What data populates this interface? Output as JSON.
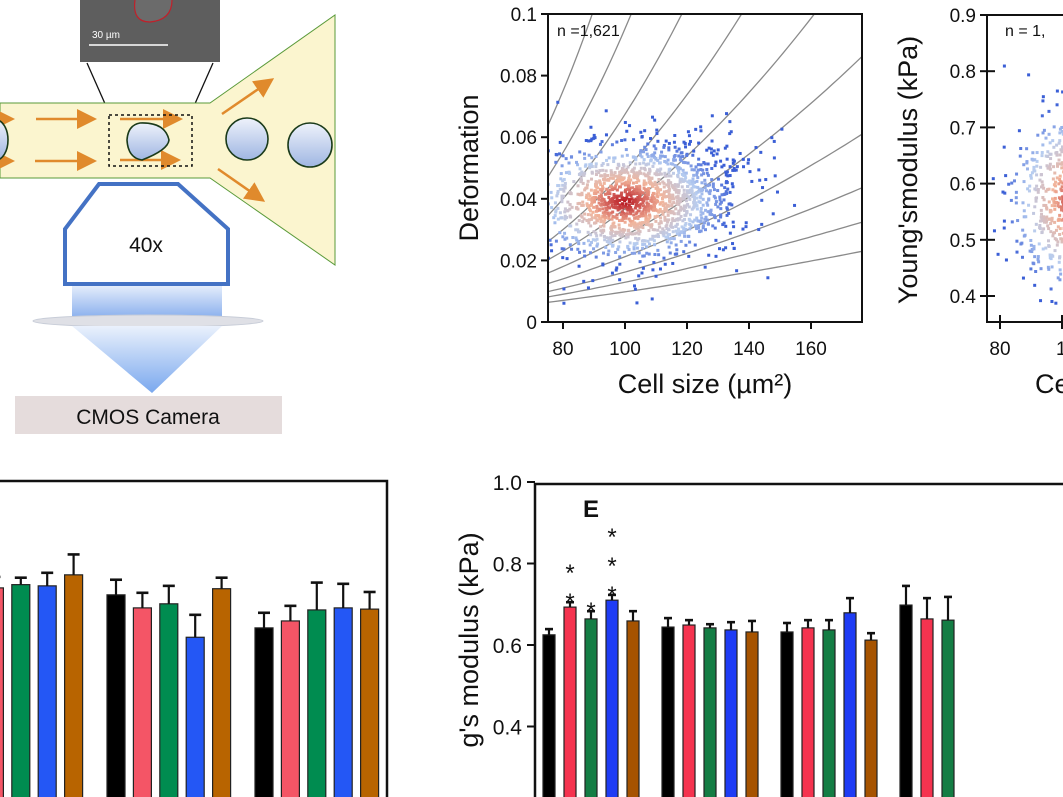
{
  "diagram": {
    "scale_bar_label": "30 µm",
    "objective_label": "40x",
    "camera_label": "CMOS Camera",
    "colors": {
      "channel": "#fbf5cf",
      "channel_edge": "#5a9a3a",
      "arrow": "#e08a2c",
      "objective": "#4472c4",
      "cell": "#b9cbea",
      "camera": "#e5dcdc"
    }
  },
  "chart_data": [
    {
      "id": "deformation-scatter",
      "type": "scatter",
      "annotation_n": "n =1,621",
      "ylabel": "Deformation",
      "xlabel": "Cell size (µm²)",
      "xlim": [
        75,
        176
      ],
      "ylim": [
        0,
        0.1
      ],
      "x_ticks": [
        "80",
        "100",
        "120",
        "140",
        "160"
      ],
      "y_ticks": [
        "0",
        "0.02",
        "0.04",
        "0.06",
        "0.08",
        "0.1"
      ],
      "density_center": {
        "x": 100,
        "y": 0.039
      },
      "color_scale": [
        "#3b5fd6",
        "#b7cdf0",
        "#f2b49a",
        "#b5101c"
      ],
      "isolines": true
    },
    {
      "id": "youngs-modulus-scatter",
      "type": "scatter",
      "annotation_n": "n = 1,",
      "ylabel": "Young'smodulus (kPa)",
      "xlabel": "Ce",
      "ylim": [
        0.354,
        0.9
      ],
      "x_ticks": [
        "80",
        "10"
      ],
      "y_ticks": [
        "0.4",
        "0.5",
        "0.6",
        "0.7",
        "0.8",
        "0.9"
      ],
      "density_center": {
        "x": 105,
        "y": 0.57
      }
    },
    {
      "id": "panel-d-bars",
      "type": "bar",
      "ylim": [
        0,
        1.0
      ],
      "series_colors": [
        "#000000",
        "#f45566",
        "#008c50",
        "#2457f5",
        "#b86400"
      ],
      "groups": [
        {
          "bars": [
            {
              "s": 1,
              "value": 0.738,
              "err": 0.027
            },
            {
              "s": 2,
              "value": 0.746,
              "err": 0.017
            },
            {
              "s": 3,
              "value": 0.743,
              "err": 0.032
            },
            {
              "s": 4,
              "value": 0.77,
              "err": 0.05
            }
          ]
        },
        {
          "bars": [
            {
              "s": 0,
              "value": 0.721,
              "err": 0.037
            },
            {
              "s": 1,
              "value": 0.689,
              "err": 0.037
            },
            {
              "s": 2,
              "value": 0.699,
              "err": 0.044
            },
            {
              "s": 3,
              "value": 0.617,
              "err": 0.055
            },
            {
              "s": 4,
              "value": 0.736,
              "err": 0.027
            }
          ]
        },
        {
          "bars": [
            {
              "s": 0,
              "value": 0.64,
              "err": 0.037
            },
            {
              "s": 1,
              "value": 0.657,
              "err": 0.037
            },
            {
              "s": 2,
              "value": 0.684,
              "err": 0.067
            },
            {
              "s": 3,
              "value": 0.689,
              "err": 0.059
            },
            {
              "s": 4,
              "value": 0.686,
              "err": 0.042
            }
          ]
        }
      ]
    },
    {
      "id": "panel-e-bars",
      "type": "bar",
      "panel_label": "E",
      "ylabel": "g's modulus (kPa)",
      "ylim": [
        0.2,
        1.0
      ],
      "y_ticks": [
        "0.4",
        "0.6",
        "0.8",
        "1.0"
      ],
      "series_colors": [
        "#000000",
        "#f5334f",
        "#147d44",
        "#1e3cf5",
        "#a65300"
      ],
      "groups": [
        {
          "bars": [
            {
              "s": 0,
              "value": 0.625,
              "err": 0.014
            },
            {
              "s": 1,
              "value": 0.693,
              "err": 0.012,
              "sig": "**"
            },
            {
              "s": 2,
              "value": 0.664,
              "err": 0.019,
              "sig": "*"
            },
            {
              "s": 3,
              "value": 0.71,
              "err": 0.013,
              "sig": "***"
            },
            {
              "s": 4,
              "value": 0.659,
              "err": 0.024
            }
          ]
        },
        {
          "bars": [
            {
              "s": 0,
              "value": 0.644,
              "err": 0.022
            },
            {
              "s": 1,
              "value": 0.649,
              "err": 0.012
            },
            {
              "s": 2,
              "value": 0.642,
              "err": 0.009
            },
            {
              "s": 3,
              "value": 0.637,
              "err": 0.019
            },
            {
              "s": 4,
              "value": 0.632,
              "err": 0.027
            }
          ]
        },
        {
          "bars": [
            {
              "s": 0,
              "value": 0.632,
              "err": 0.022
            },
            {
              "s": 1,
              "value": 0.642,
              "err": 0.019
            },
            {
              "s": 2,
              "value": 0.637,
              "err": 0.024
            },
            {
              "s": 3,
              "value": 0.679,
              "err": 0.036
            },
            {
              "s": 4,
              "value": 0.612,
              "err": 0.017
            }
          ]
        },
        {
          "bars": [
            {
              "s": 0,
              "value": 0.698,
              "err": 0.047
            },
            {
              "s": 1,
              "value": 0.664,
              "err": 0.051
            },
            {
              "s": 2,
              "value": 0.661,
              "err": 0.057
            }
          ]
        }
      ]
    }
  ]
}
